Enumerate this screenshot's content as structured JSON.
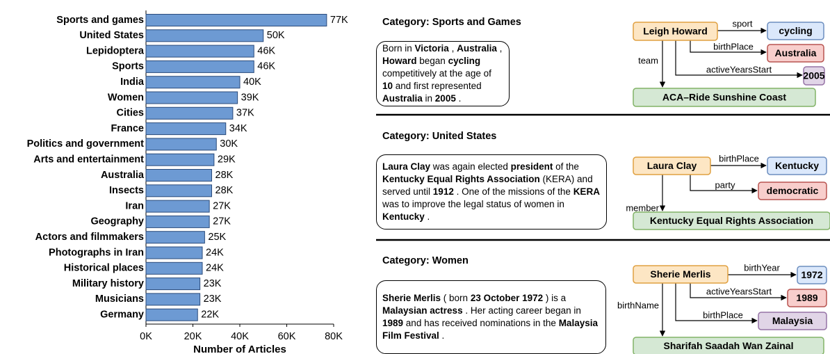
{
  "chart_data": {
    "type": "bar",
    "orientation": "horizontal",
    "xlabel": "Number of Articles",
    "categories": [
      "Sports and games",
      "United States",
      "Lepidoptera",
      "Sports",
      "India",
      "Women",
      "Cities",
      "France",
      "Politics and government",
      "Arts and entertainment",
      "Australia",
      "Insects",
      "Iran",
      "Geography",
      "Actors and filmmakers",
      "Photographs in Iran",
      "Historical places",
      "Military history",
      "Musicians",
      "Germany"
    ],
    "values": [
      77000,
      50000,
      46000,
      46000,
      40000,
      39000,
      37000,
      34000,
      30000,
      29000,
      28000,
      28000,
      27000,
      27000,
      25000,
      24000,
      24000,
      23000,
      23000,
      22000
    ],
    "value_labels": [
      "77K",
      "50K",
      "46K",
      "46K",
      "40K",
      "39K",
      "37K",
      "34K",
      "30K",
      "29K",
      "28K",
      "28K",
      "27K",
      "27K",
      "25K",
      "24K",
      "24K",
      "23K",
      "23K",
      "22K"
    ],
    "color": "#6d9ad3",
    "xlim": [
      0,
      80000
    ],
    "xticks": [
      {
        "value": 0,
        "label": "0K"
      },
      {
        "value": 20000,
        "label": "20K"
      },
      {
        "value": 40000,
        "label": "40K"
      },
      {
        "value": 60000,
        "label": "60K"
      },
      {
        "value": 80000,
        "label": "80K"
      }
    ]
  },
  "panels": [
    {
      "title": "Category: Sports and Games",
      "text": [
        "Born in ",
        {
          "text": "Victoria",
          "bold": true
        },
        " , ",
        {
          "text": "Australia",
          "bold": true
        },
        " , ",
        {
          "text": "Howard",
          "bold": true
        },
        " began ",
        {
          "text": "cycling",
          "bold": true
        },
        " competitively at the age of ",
        {
          "text": "10",
          "bold": true
        },
        " and first represented ",
        {
          "text": "Australia",
          "bold": true
        },
        " in ",
        {
          "text": "2005",
          "bold": true
        },
        " ."
      ],
      "nodes": [
        "Leigh Howard",
        "cycling",
        "Australia",
        "2005",
        "ACA–Ride Sunshine Coast"
      ],
      "edges": [
        "sport",
        "birthPlace",
        "activeYearsStart",
        "team"
      ]
    },
    {
      "title": "Category: United States",
      "text": [
        {
          "text": "Laura Clay",
          "bold": true
        },
        " was again elected ",
        {
          "text": "president",
          "bold": true
        },
        " of the ",
        {
          "text": "Kentucky Equal Rights Association",
          "bold": true
        },
        " (KERA) and served until ",
        {
          "text": "1912",
          "bold": true
        },
        " . One of the missions of the ",
        {
          "text": "KERA",
          "bold": true
        },
        " was to improve the legal status of women in ",
        {
          "text": "Kentucky",
          "bold": true
        },
        " ."
      ],
      "nodes": [
        "Laura Clay",
        "Kentucky",
        "democratic",
        "Kentucky Equal Rights Association"
      ],
      "edges": [
        "birthPlace",
        "party",
        "member"
      ]
    },
    {
      "title": "Category: Women",
      "text": [
        {
          "text": "Sherie Merlis",
          "bold": true
        },
        " ( born ",
        {
          "text": "23 October 1972",
          "bold": true
        },
        " ) is a ",
        {
          "text": "Malaysian actress",
          "bold": true
        },
        " . Her acting career began in ",
        {
          "text": "1989",
          "bold": true
        },
        " and has received nominations in the ",
        {
          "text": "Malaysia Film Festival",
          "bold": true
        },
        " ."
      ],
      "nodes": [
        "Sherie Merlis",
        "1972",
        "1989",
        "Malaysia",
        "Sharifah Saadah Wan Zainal"
      ],
      "edges": [
        "birthYear",
        "activeYearsStart",
        "birthPlace",
        "birthName"
      ]
    }
  ]
}
